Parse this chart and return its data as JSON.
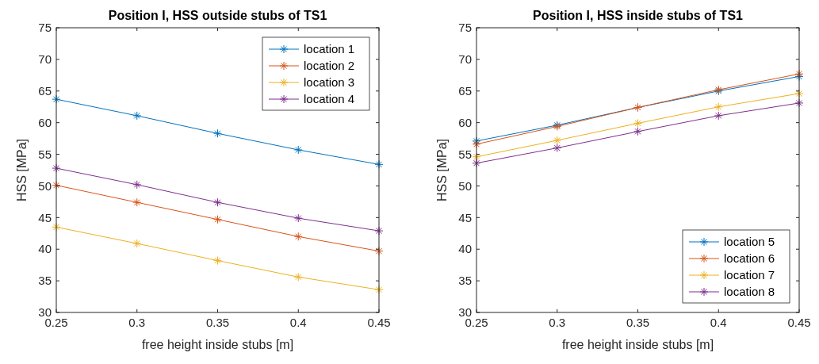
{
  "chart_data": [
    {
      "type": "line",
      "title": "Position I, HSS outside stubs of TS1",
      "xlabel": "free height inside stubs [m]",
      "ylabel": "HSS [MPa]",
      "x": [
        0.25,
        0.3,
        0.35,
        0.4,
        0.45
      ],
      "xlim": [
        0.25,
        0.45
      ],
      "xticks": [
        0.25,
        0.3,
        0.35,
        0.4,
        0.45
      ],
      "ylim": [
        30,
        75
      ],
      "yticks": [
        30,
        35,
        40,
        45,
        50,
        55,
        60,
        65,
        70,
        75
      ],
      "marker": "cross",
      "legend": "top right",
      "series": [
        {
          "name": "location 1",
          "color": "#0072bd",
          "values": [
            63.7,
            61.1,
            58.3,
            55.7,
            53.4
          ]
        },
        {
          "name": "location 2",
          "color": "#d95319",
          "values": [
            50.1,
            47.4,
            44.7,
            42.0,
            39.7
          ]
        },
        {
          "name": "location 3",
          "color": "#edb120",
          "values": [
            43.5,
            40.9,
            38.2,
            35.6,
            33.6
          ]
        },
        {
          "name": "location 4",
          "color": "#7e2f8e",
          "values": [
            52.8,
            50.2,
            47.4,
            44.9,
            42.9
          ]
        }
      ]
    },
    {
      "type": "line",
      "title": "Position I, HSS inside stubs of TS1",
      "xlabel": "free height inside stubs [m]",
      "ylabel": "HSS [MPa]",
      "x": [
        0.25,
        0.3,
        0.35,
        0.4,
        0.45
      ],
      "xlim": [
        0.25,
        0.45
      ],
      "xticks": [
        0.25,
        0.3,
        0.35,
        0.4,
        0.45
      ],
      "ylim": [
        30,
        75
      ],
      "yticks": [
        30,
        35,
        40,
        45,
        50,
        55,
        60,
        65,
        70,
        75
      ],
      "marker": "cross",
      "legend": "bottom right",
      "series": [
        {
          "name": "location 5",
          "color": "#0072bd",
          "values": [
            57.1,
            59.6,
            62.4,
            65.0,
            67.3
          ]
        },
        {
          "name": "location 6",
          "color": "#d95319",
          "values": [
            56.6,
            59.4,
            62.4,
            65.2,
            67.7
          ]
        },
        {
          "name": "location 7",
          "color": "#edb120",
          "values": [
            54.6,
            57.2,
            59.9,
            62.5,
            64.6
          ]
        },
        {
          "name": "location 8",
          "color": "#7e2f8e",
          "values": [
            53.6,
            56.0,
            58.6,
            61.1,
            63.1
          ]
        }
      ]
    }
  ]
}
